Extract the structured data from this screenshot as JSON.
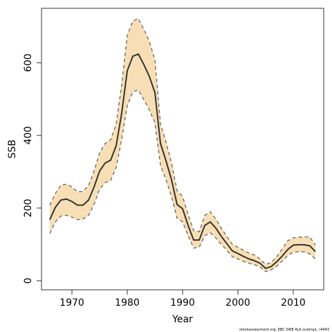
{
  "chart_data": {
    "type": "area",
    "xlabel": "Year",
    "ylabel": "SSB",
    "xlim": [
      1964.5,
      2015.5
    ],
    "ylim": [
      -25,
      750
    ],
    "x_ticks": [
      1970,
      1980,
      1990,
      2000,
      2010
    ],
    "y_ticks": [
      0,
      200,
      400,
      600
    ],
    "grid": false,
    "colors": {
      "band": "#f7deb4",
      "line": "#333333",
      "bounds": "#666666"
    },
    "x": [
      1966,
      1967,
      1968,
      1969,
      1970,
      1971,
      1972,
      1973,
      1974,
      1975,
      1976,
      1977,
      1978,
      1979,
      1980,
      1981,
      1982,
      1983,
      1984,
      1985,
      1986,
      1987,
      1988,
      1989,
      1990,
      1991,
      1992,
      1993,
      1994,
      1995,
      1996,
      1997,
      1998,
      1999,
      2000,
      2001,
      2002,
      2003,
      2004,
      2005,
      2006,
      2007,
      2008,
      2009,
      2010,
      2011,
      2012,
      2013,
      2014
    ],
    "series": [
      {
        "values": [
          168,
          202,
          222,
          225,
          218,
          208,
          208,
          222,
          258,
          302,
          324,
          332,
          372,
          462,
          578,
          618,
          624,
          595,
          562,
          518,
          378,
          330,
          278,
          210,
          198,
          152,
          112,
          112,
          152,
          162,
          145,
          122,
          102,
          82,
          75,
          67,
          60,
          55,
          48,
          34,
          39,
          52,
          68,
          86,
          98,
          99,
          99,
          96,
          80
        ]
      },
      {
        "values": [
          208,
          240,
          263,
          266,
          258,
          245,
          246,
          262,
          302,
          352,
          378,
          388,
          432,
          540,
          675,
          715,
          722,
          692,
          658,
          608,
          432,
          382,
          324,
          248,
          232,
          182,
          138,
          135,
          180,
          190,
          170,
          145,
          122,
          100,
          92,
          84,
          76,
          71,
          60,
          45,
          50,
          66,
          88,
          110,
          118,
          120,
          121,
          120,
          98
        ]
      },
      {
        "values": [
          130,
          162,
          178,
          180,
          175,
          168,
          170,
          180,
          210,
          252,
          270,
          276,
          312,
          390,
          482,
          520,
          525,
          498,
          470,
          435,
          318,
          278,
          232,
          172,
          162,
          124,
          90,
          92,
          124,
          132,
          118,
          100,
          84,
          66,
          60,
          53,
          48,
          44,
          38,
          25,
          30,
          40,
          54,
          70,
          78,
          80,
          79,
          74,
          60
        ]
      }
    ]
  },
  "footnote": "stockassessment.org, EBC SWE ALK scaling1, r4443"
}
